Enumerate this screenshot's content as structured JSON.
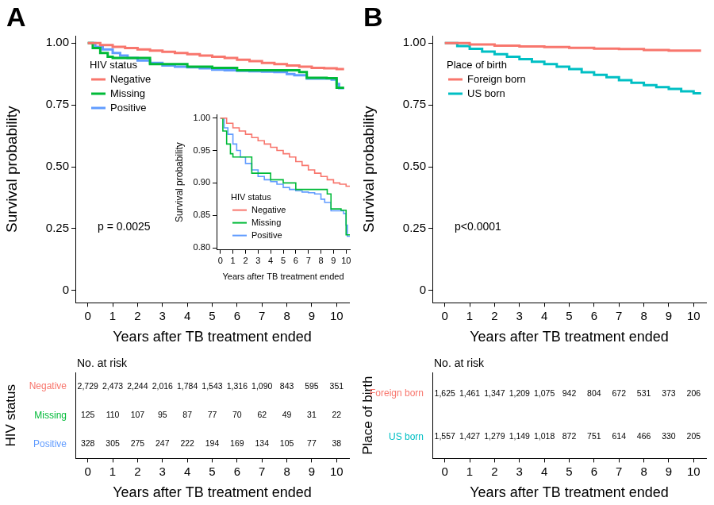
{
  "chart_data": [
    {
      "panel": "A",
      "type": "line",
      "x_label": "Years after TB treatment ended",
      "y_label": "Survival probability",
      "xlim": [
        -0.5,
        10.5
      ],
      "xticks": [
        0,
        1,
        2,
        3,
        4,
        5,
        6,
        7,
        8,
        9,
        10
      ],
      "ylim": [
        -0.05,
        1.03
      ],
      "yticks": [
        0,
        0.25,
        {
          "value": 0.5,
          "label": "0.50"
        },
        0.75,
        {
          "value": 1,
          "label": "1.00"
        }
      ],
      "grid": false,
      "line_style": "step",
      "legend": "top-left",
      "legend_title": "HIV status",
      "annotations": [
        "p = 0.0025"
      ],
      "series": [
        {
          "name": "Negative",
          "color": "#F8766D",
          "x": [
            0,
            0.5,
            1,
            1.5,
            2,
            2.5,
            3,
            3.5,
            4,
            4.5,
            5,
            5.5,
            6,
            6.5,
            7,
            7.5,
            8,
            8.5,
            9,
            9.5,
            10,
            10.3
          ],
          "values": [
            1,
            0.992,
            0.985,
            0.98,
            0.975,
            0.97,
            0.965,
            0.96,
            0.955,
            0.95,
            0.945,
            0.94,
            0.933,
            0.927,
            0.92,
            0.915,
            0.91,
            0.905,
            0.9,
            0.898,
            0.895,
            0.895
          ]
        },
        {
          "name": "Missing",
          "color": "#00BA38",
          "x": [
            0,
            0.2,
            0.5,
            0.8,
            1,
            2.5,
            3,
            4,
            5,
            6,
            7.5,
            8.5,
            8.8,
            9.6,
            10,
            10.3
          ],
          "values": [
            1,
            0.98,
            0.96,
            0.945,
            0.94,
            0.915,
            0.915,
            0.905,
            0.9,
            0.89,
            0.89,
            0.883,
            0.86,
            0.858,
            0.82,
            0.82
          ]
        },
        {
          "name": "Positive",
          "color": "#619CFF",
          "x": [
            0,
            0.3,
            0.6,
            1,
            1.3,
            1.6,
            2,
            2.5,
            3,
            3.5,
            4,
            4.5,
            5,
            5.5,
            6,
            6.5,
            7,
            7.5,
            8,
            8.3,
            8.8,
            9.3,
            9.8,
            10,
            10.1,
            10.3
          ],
          "values": [
            1,
            0.985,
            0.975,
            0.96,
            0.95,
            0.94,
            0.93,
            0.92,
            0.91,
            0.905,
            0.902,
            0.898,
            0.893,
            0.89,
            0.888,
            0.886,
            0.885,
            0.883,
            0.875,
            0.87,
            0.857,
            0.857,
            0.853,
            0.835,
            0.818,
            0.818
          ]
        }
      ],
      "inset": {
        "x_label": "Years after TB treatment ended",
        "y_label": "Survival probability",
        "xlim": [
          -0.3,
          10.3
        ],
        "xticks": [
          0,
          1,
          2,
          3,
          4,
          5,
          6,
          7,
          8,
          9,
          10
        ],
        "ylim": [
          0.797,
          1.005
        ],
        "yticks": [
          {
            "value": 0.8,
            "label": "0.80"
          },
          0.85,
          {
            "value": 0.9,
            "label": "0.90"
          },
          0.95,
          {
            "value": 1,
            "label": "1.00"
          }
        ],
        "legend": "bottom-left",
        "legend_title": "HIV status"
      },
      "at_risk": {
        "title": "No. at risk",
        "label": "HIV status",
        "x": [
          0,
          1,
          2,
          3,
          4,
          5,
          6,
          7,
          8,
          9,
          10
        ],
        "rows": [
          {
            "name": "Negative",
            "color": "#F8766D",
            "counts": [
              "2,729",
              "2,473",
              "2,244",
              "2,016",
              "1,784",
              "1,543",
              "1,316",
              "1,090",
              "843",
              "595",
              "351"
            ]
          },
          {
            "name": "Missing",
            "color": "#00BA38",
            "counts": [
              "125",
              "110",
              "107",
              "95",
              "87",
              "77",
              "70",
              "62",
              "49",
              "31",
              "22"
            ]
          },
          {
            "name": "Positive",
            "color": "#619CFF",
            "counts": [
              "328",
              "305",
              "275",
              "247",
              "222",
              "194",
              "169",
              "134",
              "105",
              "77",
              "38"
            ]
          }
        ]
      }
    },
    {
      "panel": "B",
      "type": "line",
      "x_label": "Years after TB treatment ended",
      "y_label": "Survival probability",
      "xlim": [
        -0.5,
        10.5
      ],
      "xticks": [
        0,
        1,
        2,
        3,
        4,
        5,
        6,
        7,
        8,
        9,
        10
      ],
      "ylim": [
        -0.05,
        1.03
      ],
      "yticks": [
        0,
        0.25,
        {
          "value": 0.5,
          "label": "0.50"
        },
        0.75,
        {
          "value": 1,
          "label": "1.00"
        }
      ],
      "grid": false,
      "line_style": "step",
      "legend": "top-left",
      "legend_title": "Place of birth",
      "annotations": [
        "p<0.0001"
      ],
      "series": [
        {
          "name": "Foreign born",
          "color": "#F8766D",
          "x": [
            0,
            1,
            2,
            3,
            4,
            5,
            6,
            7,
            8,
            9,
            10,
            10.3
          ],
          "values": [
            1,
            0.995,
            0.99,
            0.987,
            0.984,
            0.981,
            0.978,
            0.976,
            0.972,
            0.97,
            0.97,
            0.97
          ]
        },
        {
          "name": "US born",
          "color": "#00BFC4",
          "x": [
            0,
            0.5,
            1,
            1.5,
            2,
            2.5,
            3,
            3.5,
            4,
            4.5,
            5,
            5.5,
            6,
            6.5,
            7,
            7.5,
            8,
            8.5,
            9,
            9.5,
            10,
            10.3
          ],
          "values": [
            1,
            0.988,
            0.977,
            0.966,
            0.955,
            0.945,
            0.935,
            0.925,
            0.915,
            0.905,
            0.895,
            0.882,
            0.872,
            0.862,
            0.85,
            0.84,
            0.83,
            0.822,
            0.815,
            0.805,
            0.797,
            0.797
          ]
        }
      ],
      "at_risk": {
        "title": "No. at risk",
        "label": "Place of birth",
        "x": [
          0,
          1,
          2,
          3,
          4,
          5,
          6,
          7,
          8,
          9,
          10
        ],
        "rows": [
          {
            "name": "Foreign born",
            "color": "#F8766D",
            "counts": [
              "1,625",
              "1,461",
              "1,347",
              "1,209",
              "1,075",
              "942",
              "804",
              "672",
              "531",
              "373",
              "206"
            ]
          },
          {
            "name": "US born",
            "color": "#00BFC4",
            "counts": [
              "1,557",
              "1,427",
              "1,279",
              "1,149",
              "1,018",
              "872",
              "751",
              "614",
              "466",
              "330",
              "205"
            ]
          }
        ]
      }
    }
  ]
}
